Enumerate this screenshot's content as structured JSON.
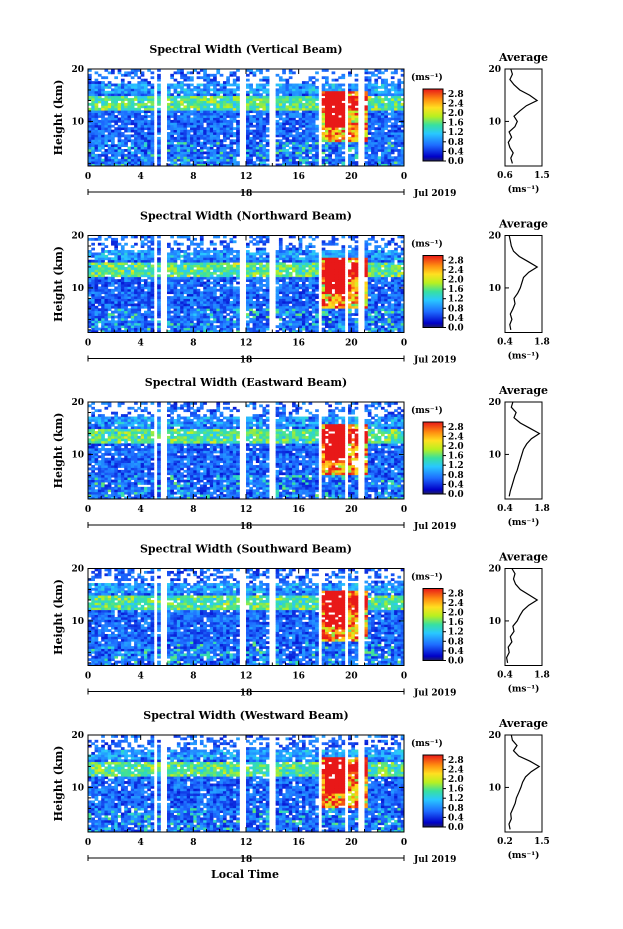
{
  "figure": {
    "date_label": "Jul 2019",
    "day_label": "18",
    "xlabel": "Local Time",
    "ylabel": "Height (km)",
    "colorbar_unit": "(ms⁻¹)",
    "colorbar_ticks": [
      "2.8",
      "2.4",
      "2.0",
      "1.6",
      "1.2",
      "0.8",
      "0.4",
      "0.0"
    ],
    "avg_title": "Average",
    "avg_xlabel": "(ms⁻¹)"
  },
  "chart_data": [
    {
      "type": "heatmap",
      "title": "Spectral Width (Vertical Beam)",
      "xlabel": "Local Time",
      "ylabel": "Height (km)",
      "x_ticks": [
        "0",
        "4",
        "8",
        "12",
        "16",
        "20",
        "0"
      ],
      "xlim": [
        0,
        24
      ],
      "y_ticks": [
        "20",
        "10"
      ],
      "ylim": [
        1.5,
        20
      ],
      "colorbar_range": [
        0.0,
        3.0
      ],
      "avg_profile": {
        "xlim": [
          0.6,
          1.5
        ],
        "x_ticks": [
          "0.6",
          "1.5"
        ],
        "y_ticks": [
          "20",
          "10"
        ],
        "points": [
          [
            0.78,
            2
          ],
          [
            0.74,
            3
          ],
          [
            0.8,
            4
          ],
          [
            0.72,
            5
          ],
          [
            0.68,
            6
          ],
          [
            0.76,
            7
          ],
          [
            0.7,
            8
          ],
          [
            0.84,
            9
          ],
          [
            0.9,
            10
          ],
          [
            0.82,
            11
          ],
          [
            0.96,
            12
          ],
          [
            1.12,
            13
          ],
          [
            1.38,
            14
          ],
          [
            1.2,
            15
          ],
          [
            0.96,
            16
          ],
          [
            0.82,
            17
          ],
          [
            0.72,
            18
          ],
          [
            0.78,
            19
          ],
          [
            0.74,
            20
          ]
        ]
      }
    },
    {
      "type": "heatmap",
      "title": "Spectral Width (Northward Beam)",
      "xlabel": "Local Time",
      "ylabel": "Height (km)",
      "x_ticks": [
        "0",
        "4",
        "8",
        "12",
        "16",
        "20",
        "0"
      ],
      "xlim": [
        0,
        24
      ],
      "y_ticks": [
        "20",
        "10"
      ],
      "ylim": [
        1.5,
        20
      ],
      "colorbar_range": [
        0.0,
        3.0
      ],
      "avg_profile": {
        "xlim": [
          0.4,
          1.8
        ],
        "x_ticks": [
          "0.4",
          "1.8"
        ],
        "y_ticks": [
          "20",
          "10"
        ],
        "points": [
          [
            0.62,
            2
          ],
          [
            0.58,
            3
          ],
          [
            0.66,
            4
          ],
          [
            0.6,
            5
          ],
          [
            0.7,
            6
          ],
          [
            0.78,
            7
          ],
          [
            0.74,
            8
          ],
          [
            0.88,
            9
          ],
          [
            0.98,
            10
          ],
          [
            1.04,
            11
          ],
          [
            1.1,
            12
          ],
          [
            1.3,
            13
          ],
          [
            1.62,
            14
          ],
          [
            1.28,
            15
          ],
          [
            0.94,
            16
          ],
          [
            0.72,
            17
          ],
          [
            0.64,
            18
          ],
          [
            0.6,
            19
          ],
          [
            0.56,
            20
          ]
        ]
      }
    },
    {
      "type": "heatmap",
      "title": "Spectral Width (Eastward Beam)",
      "xlabel": "Local Time",
      "ylabel": "Height (km)",
      "x_ticks": [
        "0",
        "4",
        "8",
        "12",
        "16",
        "20",
        "0"
      ],
      "xlim": [
        0,
        24
      ],
      "y_ticks": [
        "20",
        "10"
      ],
      "ylim": [
        1.5,
        20
      ],
      "colorbar_range": [
        0.0,
        3.0
      ],
      "avg_profile": {
        "xlim": [
          0.4,
          1.8
        ],
        "x_ticks": [
          "0.4",
          "1.8"
        ],
        "y_ticks": [
          "20",
          "10"
        ],
        "points": [
          [
            0.56,
            2
          ],
          [
            0.6,
            3
          ],
          [
            0.66,
            4
          ],
          [
            0.72,
            5
          ],
          [
            0.78,
            6
          ],
          [
            0.86,
            7
          ],
          [
            0.92,
            8
          ],
          [
            0.98,
            9
          ],
          [
            1.04,
            10
          ],
          [
            1.1,
            11
          ],
          [
            1.22,
            12
          ],
          [
            1.4,
            13
          ],
          [
            1.7,
            14
          ],
          [
            1.34,
            15
          ],
          [
            0.98,
            16
          ],
          [
            0.74,
            17
          ],
          [
            0.82,
            18
          ],
          [
            0.64,
            19
          ],
          [
            0.7,
            20
          ]
        ]
      }
    },
    {
      "type": "heatmap",
      "title": "Spectral Width (Southward Beam)",
      "xlabel": "Local Time",
      "ylabel": "Height (km)",
      "x_ticks": [
        "0",
        "4",
        "8",
        "12",
        "16",
        "20",
        "0"
      ],
      "xlim": [
        0,
        24
      ],
      "y_ticks": [
        "20",
        "10"
      ],
      "ylim": [
        1.5,
        20
      ],
      "colorbar_range": [
        0.0,
        3.0
      ],
      "avg_profile": {
        "xlim": [
          0.4,
          1.8
        ],
        "x_ticks": [
          "0.4",
          "1.8"
        ],
        "y_ticks": [
          "20",
          "10"
        ],
        "points": [
          [
            0.5,
            2
          ],
          [
            0.46,
            3
          ],
          [
            0.56,
            4
          ],
          [
            0.52,
            5
          ],
          [
            0.66,
            6
          ],
          [
            0.6,
            7
          ],
          [
            0.74,
            8
          ],
          [
            0.7,
            9
          ],
          [
            0.86,
            10
          ],
          [
            0.96,
            11
          ],
          [
            1.08,
            12
          ],
          [
            1.3,
            13
          ],
          [
            1.62,
            14
          ],
          [
            1.3,
            15
          ],
          [
            0.98,
            16
          ],
          [
            0.8,
            17
          ],
          [
            0.72,
            18
          ],
          [
            0.78,
            19
          ],
          [
            0.66,
            20
          ]
        ]
      }
    },
    {
      "type": "heatmap",
      "title": "Spectral Width (Westward Beam)",
      "xlabel": "Local Time",
      "ylabel": "Height (km)",
      "x_ticks": [
        "0",
        "4",
        "8",
        "12",
        "16",
        "20",
        "0"
      ],
      "xlim": [
        0,
        24
      ],
      "y_ticks": [
        "20",
        "10"
      ],
      "ylim": [
        1.5,
        20
      ],
      "colorbar_range": [
        0.0,
        3.0
      ],
      "avg_profile": {
        "xlim": [
          0.2,
          1.5
        ],
        "x_ticks": [
          "0.2",
          "1.5"
        ],
        "y_ticks": [
          "20",
          "10"
        ],
        "points": [
          [
            0.38,
            2
          ],
          [
            0.34,
            3
          ],
          [
            0.42,
            4
          ],
          [
            0.4,
            5
          ],
          [
            0.48,
            6
          ],
          [
            0.56,
            7
          ],
          [
            0.6,
            8
          ],
          [
            0.68,
            9
          ],
          [
            0.76,
            10
          ],
          [
            0.82,
            11
          ],
          [
            0.92,
            12
          ],
          [
            1.12,
            13
          ],
          [
            1.4,
            14
          ],
          [
            1.08,
            15
          ],
          [
            0.68,
            16
          ],
          [
            0.5,
            17
          ],
          [
            0.62,
            18
          ],
          [
            0.46,
            19
          ],
          [
            0.42,
            20
          ]
        ]
      }
    }
  ]
}
